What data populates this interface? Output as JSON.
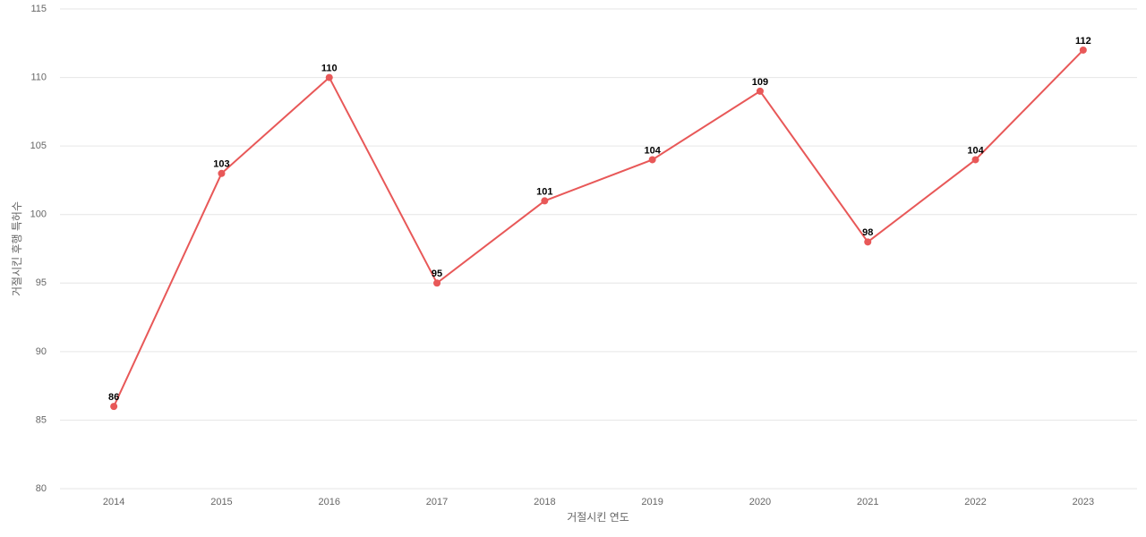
{
  "chart_data": {
    "type": "line",
    "x_label": "거절시킨 연도",
    "y_label": "거절시킨 후행 특허수",
    "categories": [
      "2014",
      "2015",
      "2016",
      "2017",
      "2018",
      "2019",
      "2020",
      "2021",
      "2022",
      "2023"
    ],
    "values": [
      86,
      103,
      110,
      95,
      101,
      104,
      109,
      98,
      104,
      112
    ],
    "color": "#e85858",
    "ylim": [
      80,
      115
    ],
    "yticks": [
      80,
      85,
      90,
      95,
      100,
      105,
      110,
      115
    ],
    "grid": true
  }
}
